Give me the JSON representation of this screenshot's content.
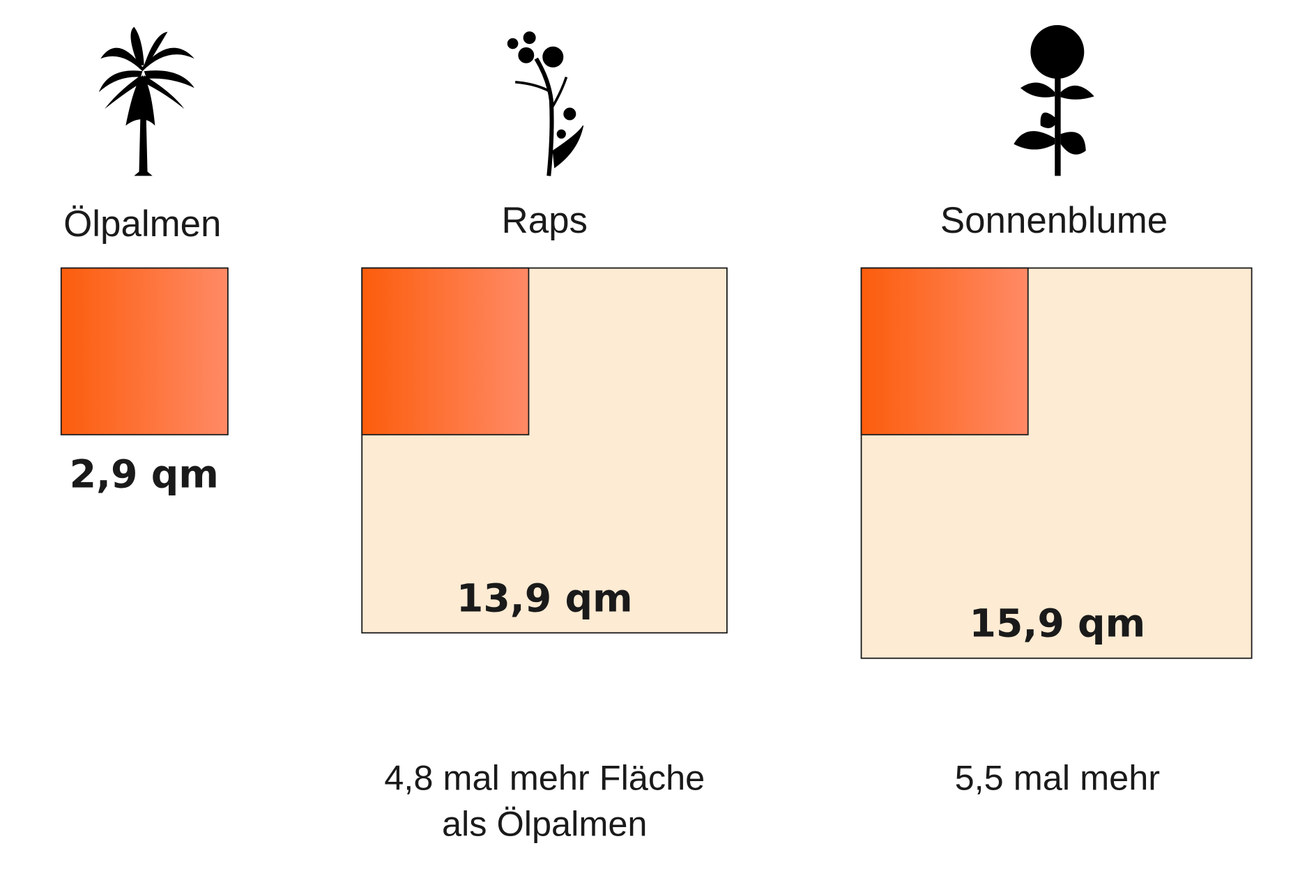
{
  "colors": {
    "base_gradient_start": "#fc5d0c",
    "base_gradient_end": "#ff8a66",
    "comparison_fill": "#fdebd3",
    "outline": "#1a1a1a",
    "icon": "#000000"
  },
  "chart_data": {
    "type": "square-area-comparison",
    "unit": "qm",
    "categories": [
      "Ölpalmen",
      "Raps",
      "Sonnenblume"
    ],
    "values": [
      2.9,
      13.9,
      15.9
    ],
    "items": [
      {
        "label": "Ölpalmen",
        "icon": "palm-tree-icon",
        "value_label": "2,9 qm",
        "value": 2.9,
        "note_lines": []
      },
      {
        "label": "Raps",
        "icon": "rapeseed-plant-icon",
        "value_label": "13,9 qm",
        "value": 13.9,
        "note_lines": [
          "4,8 mal mehr Fläche",
          "als Ölpalmen"
        ]
      },
      {
        "label": "Sonnenblume",
        "icon": "sunflower-icon",
        "value_label": "15,9 qm",
        "value": 15.9,
        "note_lines": [
          "5,5 mal mehr"
        ]
      }
    ]
  }
}
